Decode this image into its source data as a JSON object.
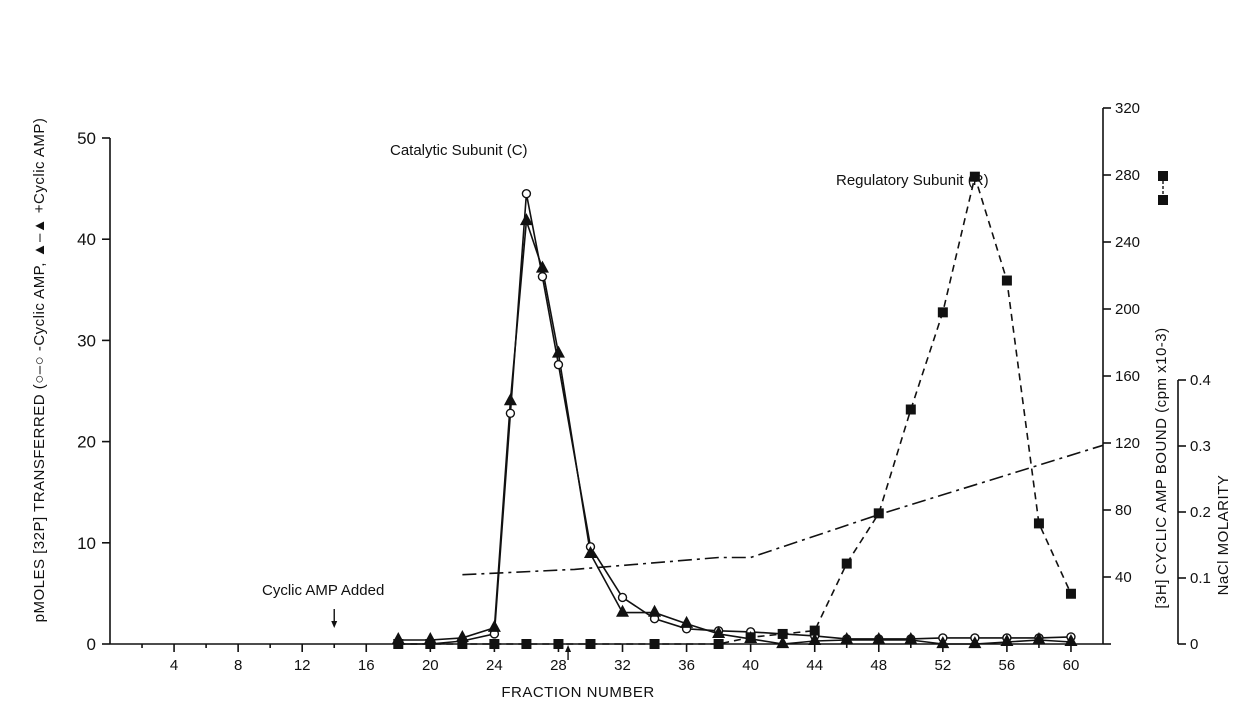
{
  "chart_data": {
    "type": "line",
    "xlabel": "FRACTION NUMBER",
    "ylabel_left": "pMOLES [32P] TRANSFERRED (○–○ -Cyclic AMP, ▲–▲ +Cyclic AMP)",
    "ylabel_right1": "[3H] CYCLIC AMP BOUND (cpm x10-3)",
    "ylabel_right2": "NaCl MOLARITY",
    "xlim": [
      0,
      62
    ],
    "ylim_left": [
      0,
      50
    ],
    "ylim_right1": [
      0,
      320
    ],
    "ylim_right2": [
      0,
      0.4
    ],
    "x_ticks": [
      4,
      8,
      12,
      16,
      20,
      24,
      28,
      32,
      36,
      40,
      44,
      48,
      52,
      56,
      60
    ],
    "y_ticks_left": [
      0,
      10,
      20,
      30,
      40,
      50
    ],
    "y_ticks_right1": [
      40,
      80,
      120,
      160,
      200,
      240,
      280,
      320
    ],
    "y_ticks_right2": [
      0,
      0.1,
      0.2,
      0.3,
      0.4
    ],
    "annotations": {
      "catalytic": "Catalytic Subunit (C)",
      "regulatory": "Regulatory Subunit (R)",
      "cyclic_added": "Cyclic AMP Added"
    },
    "series": [
      {
        "axis": "left",
        "marker": "open-circle",
        "line": "solid",
        "x": [
          18,
          20,
          22,
          24,
          25,
          26,
          27,
          28,
          30,
          32,
          34,
          36,
          38,
          40,
          42,
          44,
          46,
          48,
          50,
          52,
          54,
          56,
          58,
          60
        ],
        "y": [
          0,
          0,
          0.3,
          1,
          22.8,
          44.5,
          36.3,
          27.6,
          9.6,
          4.6,
          2.5,
          1.5,
          1.3,
          1.2,
          1,
          0.8,
          0.5,
          0.5,
          0.5,
          0.6,
          0.6,
          0.6,
          0.6,
          0.7
        ]
      },
      {
        "axis": "left",
        "marker": "filled-triangle",
        "line": "solid",
        "x": [
          18,
          20,
          22,
          24,
          25,
          26,
          27,
          28,
          30,
          32,
          34,
          36,
          38,
          40,
          42,
          44,
          46,
          48,
          50,
          52,
          54,
          56,
          58,
          60
        ],
        "y": [
          0.4,
          0.4,
          0.6,
          1.6,
          24,
          41.8,
          37.1,
          28.7,
          8.9,
          3.1,
          3.1,
          2,
          1,
          0.5,
          0,
          0.3,
          0.4,
          0.4,
          0.4,
          0,
          0,
          0.2,
          0.4,
          0.2
        ]
      },
      {
        "axis": "right1",
        "marker": "filled-square",
        "line": "dashed",
        "x": [
          18,
          20,
          22,
          24,
          26,
          28,
          30,
          34,
          38,
          40,
          42,
          44,
          46,
          48,
          50,
          52,
          54,
          56,
          58,
          60
        ],
        "y": [
          0,
          0,
          0,
          0,
          0,
          0,
          0,
          0,
          0,
          4,
          6,
          8,
          48,
          78,
          140,
          198,
          279,
          217,
          72,
          30
        ]
      },
      {
        "axis": "right2",
        "marker": "none",
        "line": "dash-dot",
        "x": [
          22,
          29,
          38,
          40,
          48,
          62
        ],
        "y": [
          0.105,
          0.113,
          0.131,
          0.131,
          0.196,
          0.301
        ]
      }
    ],
    "arrows": [
      {
        "x": 14,
        "direction": "down"
      },
      {
        "x": 28.6,
        "direction": "up"
      }
    ]
  }
}
